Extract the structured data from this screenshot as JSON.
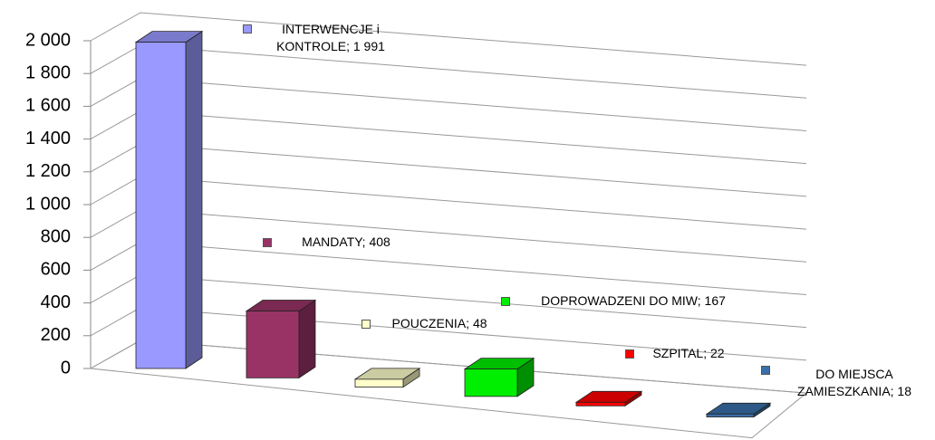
{
  "chart_data": {
    "type": "bar3d",
    "categories": [
      null,
      null,
      null,
      null,
      null,
      null
    ],
    "values": [
      1991,
      408,
      48,
      167,
      22,
      18
    ],
    "value_labels": [
      "INTERWENCJE i KONTROLE; 1 991",
      "MANDATY; 408",
      "POUCZENIA; 48",
      "DOPROWADZENI DO MIW; 167",
      "SZPITAL; 22",
      "DO MIEJSCA ZAMIESZKANIA; 18"
    ],
    "colors": [
      "#9999ff",
      "#993366",
      "#ffffcc",
      "#00ee00",
      "#ff0000",
      "#3a6fa8"
    ],
    "ylim": [
      0,
      2000
    ],
    "yticks": [
      0,
      200,
      400,
      600,
      800,
      {
        "value": 1000,
        "label": "1 000"
      },
      {
        "value": 1200,
        "label": "1 200"
      },
      {
        "value": 1400,
        "label": "1 400"
      },
      {
        "value": 1600,
        "label": "1 600"
      },
      {
        "value": 1800,
        "label": "1 800"
      },
      {
        "value": 2000,
        "label": "2 000"
      }
    ],
    "grid": true
  }
}
